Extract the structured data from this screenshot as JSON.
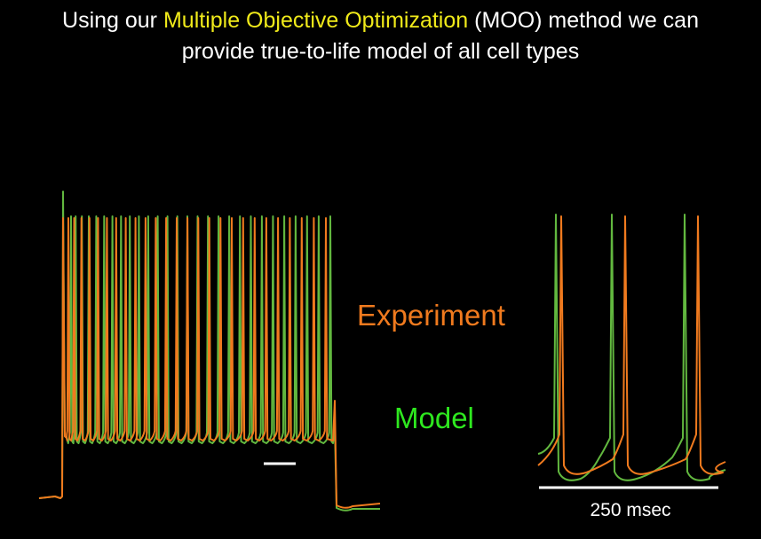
{
  "title": {
    "line1_prefix": "Using our ",
    "line1_highlight": "Multiple Objective Optimization",
    "line1_suffix": " (MOO) method we can",
    "line2": "provide true-to-life model of all cell types",
    "highlight_color": "#f0ea1a"
  },
  "legend": {
    "experiment": {
      "label": "Experiment",
      "color": "#f07a1e"
    },
    "model": {
      "label": "Model",
      "color": "#2ee81f"
    }
  },
  "traces": {
    "experiment_color": "#f07a1e",
    "model_color": "#62b83f"
  },
  "scale_bar": {
    "label": "250 msec"
  }
}
